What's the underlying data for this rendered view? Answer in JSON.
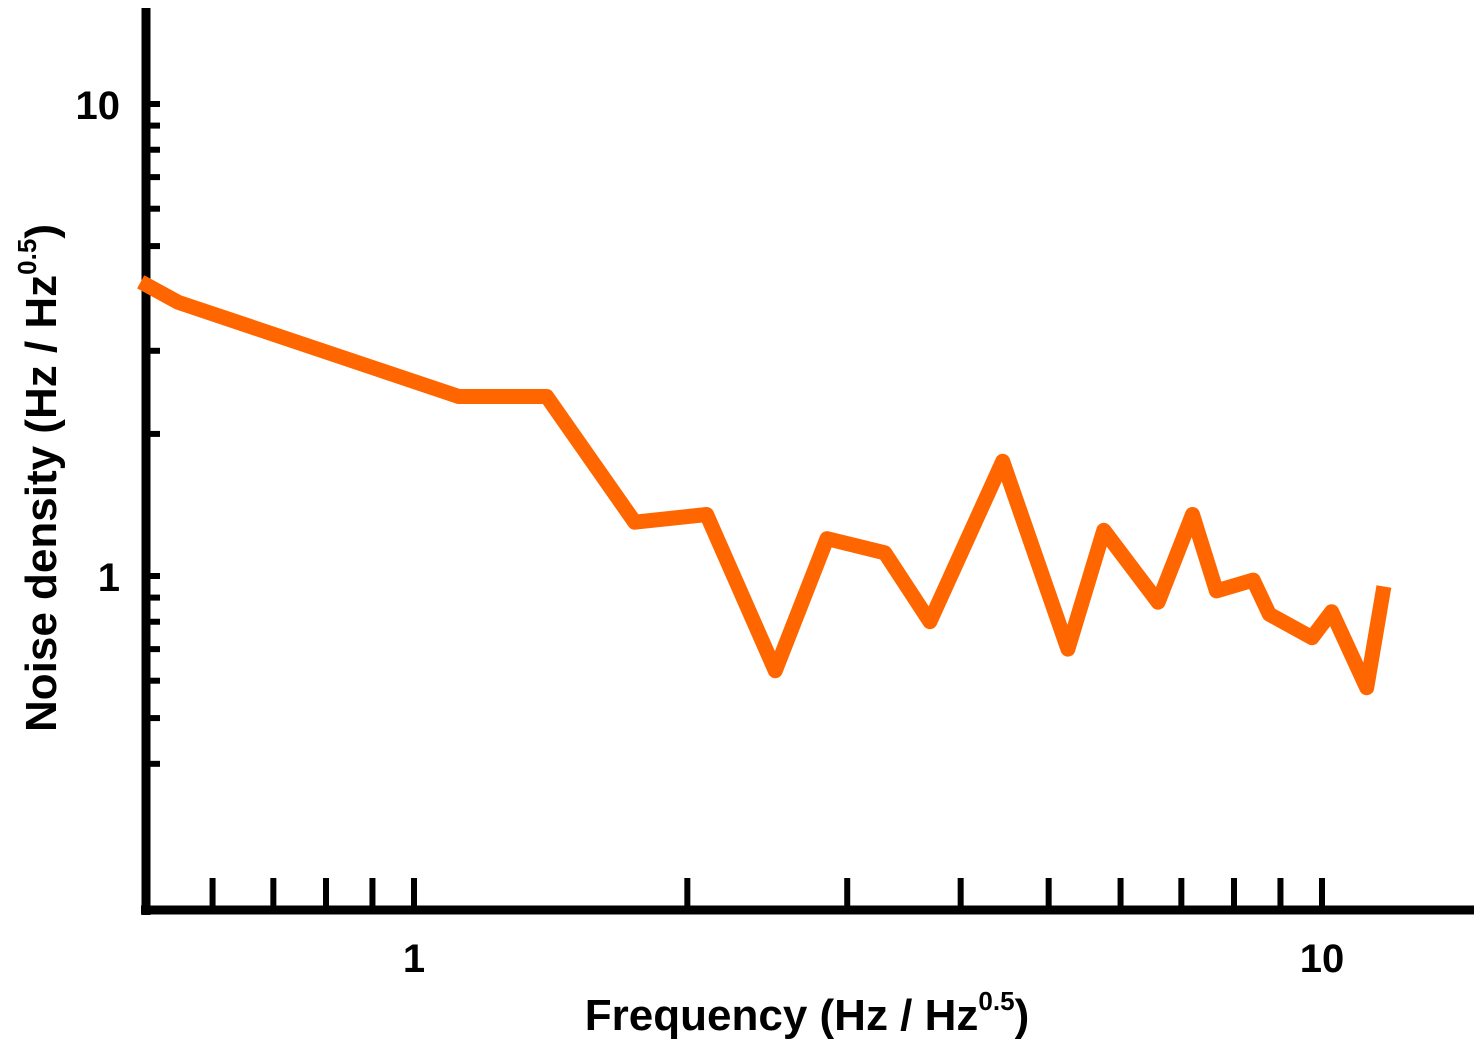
{
  "chart_data": {
    "type": "line",
    "x_scale": "log",
    "y_scale": "log",
    "xlim": [
      0.5,
      14
    ],
    "ylim": [
      0.3,
      15
    ],
    "grid": false,
    "xlabel_main": "Frequency (Hz / Hz",
    "xlabel_sup": "0.5",
    "xlabel_end": ")",
    "ylabel_main": "Noise density (Hz / Hz",
    "ylabel_sup": "0.5",
    "ylabel_end": ")",
    "x_tick_labels": [
      {
        "value": 1,
        "label": "1"
      },
      {
        "value": 10,
        "label": "10"
      }
    ],
    "y_tick_labels": [
      {
        "value": 1,
        "label": "1"
      },
      {
        "value": 10,
        "label": "10"
      }
    ],
    "x_minor_ticks": [
      0.6,
      0.7,
      0.8,
      0.9,
      2,
      3,
      4,
      5,
      6,
      7,
      8,
      9
    ],
    "y_minor_ticks": [
      0.4,
      0.5,
      0.6,
      0.7,
      0.8,
      0.9,
      2,
      3,
      4,
      5,
      6,
      7,
      8,
      9
    ],
    "series": [
      {
        "color": "#ff6600",
        "x": [
          0.5,
          0.55,
          1.12,
          1.4,
          1.75,
          2.1,
          2.5,
          2.85,
          3.3,
          3.7,
          4.45,
          5.25,
          5.75,
          6.6,
          7.2,
          7.65,
          8.4,
          8.75,
          9.75,
          10.25,
          11.2,
          11.7
        ],
        "y": [
          4.2,
          3.8,
          2.4,
          2.4,
          1.3,
          1.35,
          0.63,
          1.2,
          1.12,
          0.8,
          1.75,
          0.7,
          1.25,
          0.88,
          1.35,
          0.93,
          0.98,
          0.83,
          0.74,
          0.84,
          0.58,
          0.95
        ]
      }
    ]
  }
}
